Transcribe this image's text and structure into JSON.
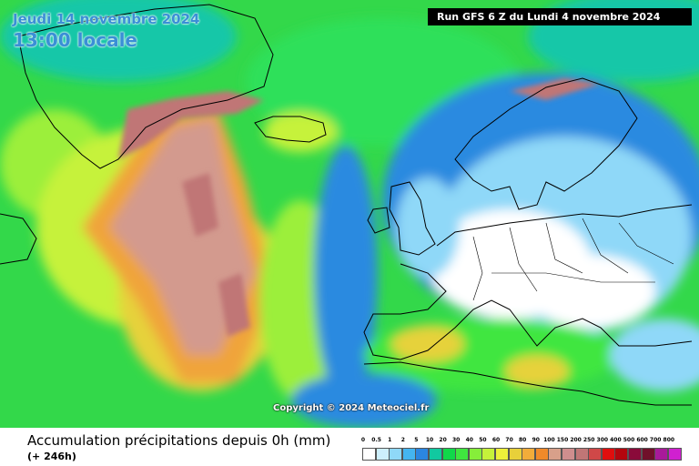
{
  "header": {
    "date": "Jeudi 14 novembre 2024",
    "time": "13:00 locale",
    "run": "Run GFS 6 Z du Lundi 4 novembre 2024"
  },
  "map": {
    "copyright": "Copyright © 2024 Meteociel.fr"
  },
  "legend": {
    "title": "Accumulation précipitations depuis 0h (mm)",
    "subtitle": "(+ 246h)",
    "ticks": [
      "0",
      "0.5",
      "1",
      "2",
      "5",
      "10",
      "20",
      "30",
      "40",
      "50",
      "60",
      "70",
      "80",
      "90",
      "100",
      "150",
      "200",
      "250",
      "300",
      "400",
      "500",
      "600",
      "700",
      "800"
    ],
    "colors": [
      "#ffffff",
      "#cdeffc",
      "#8fd8f8",
      "#44b5f0",
      "#2b86e0",
      "#11c9a0",
      "#10d84a",
      "#3fe63f",
      "#86ee3a",
      "#c6f23a",
      "#eef03a",
      "#e8d03a",
      "#f2ac3a",
      "#f08a2a",
      "#d8a08a",
      "#cf8e8e",
      "#c07676",
      "#d04848",
      "#e00e0e",
      "#b4060e",
      "#8a0a3a",
      "#70102a",
      "#a81a9a",
      "#d020d0"
    ]
  }
}
